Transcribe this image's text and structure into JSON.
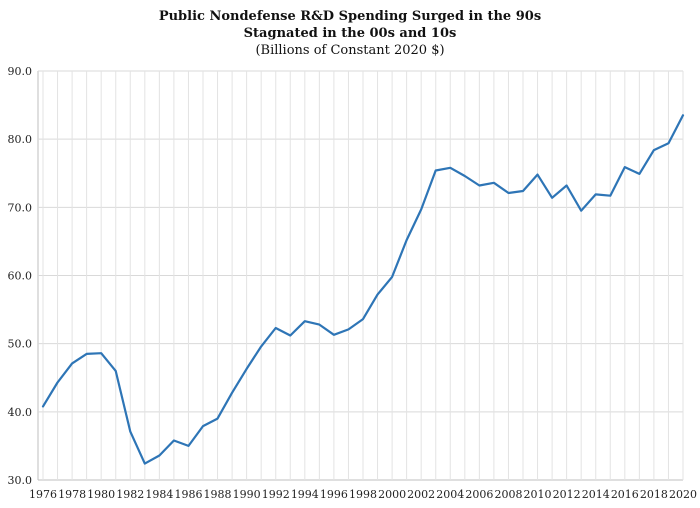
{
  "chart_data": {
    "type": "line",
    "title": [
      "Public Nondefense R&D Spending Surged in the 90s",
      "Stagnated in the 00s and 10s"
    ],
    "subtitle": "(Billions of Constant 2020 $)",
    "xlabel": "",
    "ylabel": "",
    "ylim": [
      30,
      90
    ],
    "xlim": [
      1976,
      2020
    ],
    "y_ticks": [
      "30.0",
      "40.0",
      "50.0",
      "60.0",
      "70.0",
      "80.0",
      "90.0"
    ],
    "x_ticks": [
      "1976",
      "1978",
      "1980",
      "1982",
      "1984",
      "1986",
      "1988",
      "1990",
      "1992",
      "1994",
      "1996",
      "1998",
      "2000",
      "2002",
      "2004",
      "2006",
      "2008",
      "2010",
      "2012",
      "2014",
      "2016",
      "2018",
      "2020"
    ],
    "grid": "vertical and horizontal",
    "legend": "none",
    "series": [
      {
        "color": "#2e75b6",
        "x": [
          1976,
          1977,
          1978,
          1979,
          1980,
          1981,
          1982,
          1983,
          1984,
          1985,
          1986,
          1987,
          1988,
          1989,
          1990,
          1991,
          1992,
          1993,
          1994,
          1995,
          1996,
          1997,
          1998,
          1999,
          2000,
          2001,
          2002,
          2003,
          2004,
          2005,
          2006,
          2007,
          2008,
          2009,
          2010,
          2011,
          2012,
          2013,
          2014,
          2015,
          2016,
          2017,
          2018,
          2019,
          2020
        ],
        "values": [
          40.8,
          44.3,
          47.1,
          48.5,
          48.6,
          46.0,
          37.1,
          32.4,
          33.6,
          35.8,
          35.0,
          37.9,
          39.0,
          42.8,
          46.3,
          49.6,
          52.3,
          51.2,
          53.3,
          52.8,
          51.3,
          52.1,
          53.6,
          57.2,
          59.8,
          65.2,
          69.7,
          75.4,
          75.8,
          74.6,
          73.2,
          73.6,
          72.1,
          72.4,
          74.8,
          71.4,
          73.2,
          69.5,
          71.9,
          71.7,
          75.9,
          74.9,
          78.4,
          79.4,
          83.5
        ]
      }
    ]
  }
}
